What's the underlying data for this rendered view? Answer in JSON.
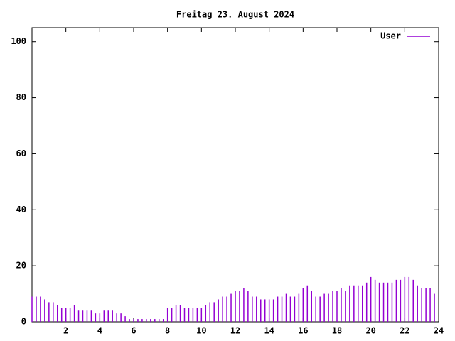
{
  "chart_data": {
    "type": "impulse",
    "title": "Freitag 23. August 2024",
    "x": [
      0,
      0.25,
      0.5,
      0.75,
      1,
      1.25,
      1.5,
      1.75,
      2,
      2.25,
      2.5,
      2.75,
      3,
      3.25,
      3.5,
      3.75,
      4,
      4.25,
      4.5,
      4.75,
      5,
      5.25,
      5.5,
      5.75,
      6,
      6.25,
      6.5,
      6.75,
      7,
      7.25,
      7.5,
      7.75,
      8,
      8.25,
      8.5,
      8.75,
      9,
      9.25,
      9.5,
      9.75,
      10,
      10.25,
      10.5,
      10.75,
      11,
      11.25,
      11.5,
      11.75,
      12,
      12.25,
      12.5,
      12.75,
      13,
      13.25,
      13.5,
      13.75,
      14,
      14.25,
      14.5,
      14.75,
      15,
      15.25,
      15.5,
      15.75,
      16,
      16.25,
      16.5,
      16.75,
      17,
      17.25,
      17.5,
      17.75,
      18,
      18.25,
      18.5,
      18.75,
      19,
      19.25,
      19.5,
      19.75,
      20,
      20.25,
      20.5,
      20.75,
      21,
      21.25,
      21.5,
      21.75,
      22,
      22.25,
      22.5,
      22.75,
      23,
      23.25,
      23.5,
      23.75
    ],
    "series": [
      {
        "name": "User",
        "color": "#9400d3",
        "values": [
          9,
          9,
          9,
          8,
          7,
          7,
          6,
          5,
          5,
          5,
          6,
          4,
          4,
          4,
          4,
          3,
          3,
          4,
          4,
          4,
          3,
          3,
          2,
          1,
          1,
          1,
          1,
          1,
          1,
          1,
          1,
          1,
          5,
          5,
          6,
          6,
          5,
          5,
          5,
          5,
          5,
          6,
          7,
          7,
          8,
          9,
          9,
          10,
          11,
          11,
          12,
          11,
          9,
          9,
          8,
          8,
          8,
          8,
          9,
          9,
          10,
          9,
          9,
          10,
          12,
          13,
          11,
          9,
          9,
          10,
          10,
          11,
          11,
          12,
          11,
          13,
          13,
          13,
          13,
          14,
          16,
          15,
          14,
          14,
          14,
          14,
          15,
          15,
          16,
          16,
          15,
          13,
          12,
          12,
          12,
          10
        ]
      }
    ],
    "xlim": [
      0,
      24
    ],
    "xticks": [
      2,
      4,
      6,
      8,
      10,
      12,
      14,
      16,
      18,
      20,
      22,
      24
    ],
    "ylim": [
      0,
      105
    ],
    "yticks": [
      0,
      20,
      40,
      60,
      80,
      100
    ],
    "legend": "top-right"
  }
}
